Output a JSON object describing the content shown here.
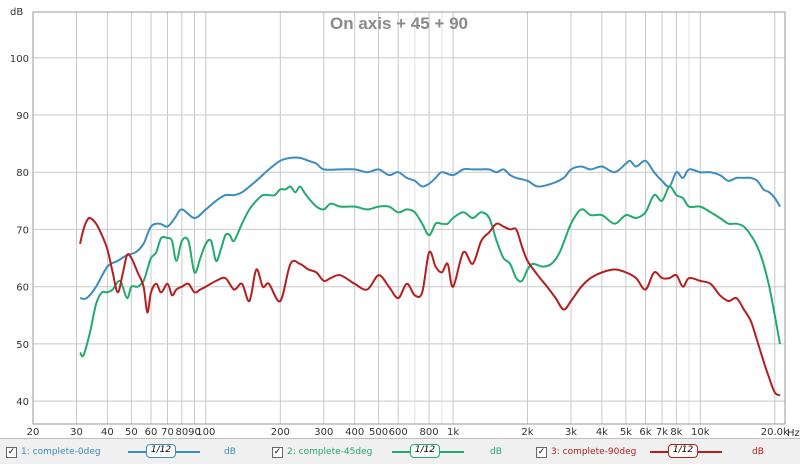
{
  "chart_data": {
    "type": "line",
    "title": "On axis + 45 + 90",
    "xlabel": "Hz",
    "ylabel": "dB",
    "xscale": "log",
    "xlim": [
      20,
      22000
    ],
    "ylim": [
      36,
      108
    ],
    "x_ticks": [
      {
        "v": 20,
        "t": "20"
      },
      {
        "v": 30,
        "t": "30"
      },
      {
        "v": 40,
        "t": "40"
      },
      {
        "v": 50,
        "t": "50"
      },
      {
        "v": 60,
        "t": "60"
      },
      {
        "v": 70,
        "t": "70"
      },
      {
        "v": 80,
        "t": "80"
      },
      {
        "v": 90,
        "t": "90"
      },
      {
        "v": 100,
        "t": "100"
      },
      {
        "v": 200,
        "t": "200"
      },
      {
        "v": 300,
        "t": "300"
      },
      {
        "v": 400,
        "t": "400"
      },
      {
        "v": 500,
        "t": "500"
      },
      {
        "v": 600,
        "t": "600"
      },
      {
        "v": 800,
        "t": "800"
      },
      {
        "v": 1000,
        "t": "1k"
      },
      {
        "v": 2000,
        "t": "2k"
      },
      {
        "v": 3000,
        "t": "3k"
      },
      {
        "v": 4000,
        "t": "4k"
      },
      {
        "v": 5000,
        "t": "5k"
      },
      {
        "v": 6000,
        "t": "6k"
      },
      {
        "v": 7000,
        "t": "7k"
      },
      {
        "v": 8000,
        "t": "8k"
      },
      {
        "v": 10000,
        "t": "10k"
      },
      {
        "v": 20000,
        "t": "20.0k"
      }
    ],
    "x_minor": [
      700,
      900,
      9000
    ],
    "y_ticks": [
      40,
      50,
      60,
      70,
      80,
      90,
      100
    ],
    "grid": true,
    "legend_position": "bottom",
    "series": [
      {
        "name": "1: complete-0deg",
        "color": "#3c8cbe",
        "x": [
          31,
          33,
          36,
          40,
          44,
          48,
          52,
          56,
          60,
          65,
          70,
          75,
          80,
          90,
          100,
          110,
          120,
          130,
          140,
          160,
          180,
          200,
          220,
          240,
          260,
          280,
          300,
          350,
          400,
          450,
          500,
          550,
          600,
          650,
          700,
          750,
          800,
          850,
          900,
          1000,
          1100,
          1200,
          1300,
          1400,
          1500,
          1600,
          1700,
          1800,
          2000,
          2200,
          2500,
          2800,
          3000,
          3300,
          3600,
          4000,
          4500,
          5000,
          5200,
          5500,
          6000,
          6500,
          7000,
          7500,
          8000,
          8500,
          9000,
          10000,
          11000,
          12000,
          13000,
          14000,
          15000,
          16000,
          17000,
          18000,
          19000,
          20000,
          21000
        ],
        "y": [
          58,
          58,
          60,
          63.5,
          64.5,
          65.5,
          66,
          67.5,
          70.5,
          71,
          70.5,
          72,
          73.5,
          72,
          73.5,
          75,
          76,
          76,
          76.5,
          78.5,
          80.5,
          82,
          82.5,
          82.5,
          82,
          81.5,
          80.5,
          80.5,
          80.5,
          80,
          80.5,
          79.5,
          80,
          79,
          78.5,
          77.5,
          78,
          79,
          80,
          79.5,
          80.5,
          80.5,
          80.5,
          80.5,
          80,
          80.5,
          79.5,
          79,
          78.5,
          77.5,
          78,
          79,
          80.5,
          81,
          80.5,
          81,
          80,
          81.5,
          82,
          81,
          82,
          80,
          78.5,
          77.5,
          80,
          79,
          80.5,
          80,
          80,
          79.5,
          78.5,
          79,
          79,
          79,
          78.5,
          77,
          76.5,
          75.5,
          74
        ]
      },
      {
        "name": "2: complete-45deg",
        "color": "#23aa6e",
        "x": [
          31,
          32,
          34,
          36,
          38,
          40,
          42,
          45,
          48,
          50,
          53,
          56,
          58,
          60,
          63,
          66,
          70,
          73,
          76,
          80,
          85,
          90,
          95,
          100,
          105,
          110,
          115,
          120,
          125,
          130,
          140,
          150,
          160,
          170,
          180,
          190,
          200,
          210,
          220,
          230,
          240,
          250,
          260,
          280,
          300,
          320,
          350,
          400,
          450,
          500,
          550,
          600,
          650,
          700,
          750,
          800,
          850,
          900,
          950,
          1000,
          1100,
          1200,
          1300,
          1400,
          1500,
          1600,
          1700,
          1800,
          1900,
          2000,
          2100,
          2300,
          2500,
          2700,
          3000,
          3300,
          3600,
          4000,
          4500,
          5000,
          5500,
          6000,
          6500,
          7000,
          7500,
          8000,
          8500,
          9000,
          10000,
          11000,
          12000,
          13000,
          14000,
          15000,
          16000,
          17000,
          18000,
          19000,
          20000,
          21000
        ],
        "y": [
          48.5,
          48,
          52,
          57,
          59,
          59,
          59.5,
          61,
          58,
          60,
          60,
          61,
          63,
          65,
          66,
          68.5,
          68.5,
          68,
          64.5,
          68,
          68,
          62.5,
          65,
          67.5,
          68,
          64.5,
          66.5,
          69,
          69,
          68,
          71,
          73.5,
          75,
          76,
          76,
          76,
          77,
          77,
          77.5,
          76.5,
          77.5,
          76.5,
          75.5,
          74,
          73.5,
          74.5,
          74,
          74,
          73.5,
          74,
          74,
          73,
          73.5,
          73,
          71,
          69,
          71,
          71,
          71,
          72,
          73,
          72,
          73,
          72,
          68,
          65,
          64,
          61.5,
          61,
          63,
          64,
          63.5,
          64,
          66,
          71,
          73.5,
          72.5,
          72.5,
          71,
          72.5,
          72,
          73,
          76,
          75,
          77.5,
          76,
          75.5,
          74,
          74,
          73,
          72,
          71,
          71,
          70.5,
          69,
          67,
          64,
          60,
          55,
          50
        ]
      },
      {
        "name": "3: complete-90deg",
        "color": "#b41e1e",
        "x": [
          31,
          32,
          33,
          34,
          36,
          38,
          40,
          42,
          44,
          46,
          48,
          50,
          53,
          56,
          58,
          60,
          63,
          66,
          70,
          73,
          76,
          80,
          85,
          90,
          95,
          100,
          110,
          120,
          130,
          140,
          150,
          160,
          170,
          180,
          200,
          220,
          240,
          260,
          280,
          300,
          320,
          350,
          400,
          450,
          500,
          550,
          600,
          650,
          700,
          750,
          800,
          850,
          900,
          950,
          1000,
          1100,
          1200,
          1300,
          1400,
          1500,
          1600,
          1700,
          1800,
          1900,
          2000,
          2200,
          2400,
          2600,
          2800,
          3000,
          3300,
          3600,
          4000,
          4500,
          5000,
          5500,
          6000,
          6500,
          7000,
          7500,
          8000,
          8500,
          9000,
          10000,
          11000,
          12000,
          13000,
          14000,
          15000,
          16000,
          17000,
          18000,
          19000,
          20000,
          21000
        ],
        "y": [
          67.5,
          70,
          71.5,
          72,
          71,
          69,
          66.5,
          62.5,
          59,
          62,
          65.5,
          65,
          62.5,
          60,
          55.5,
          59,
          60.5,
          59,
          60.5,
          58.5,
          59.5,
          60,
          60.5,
          59,
          59.5,
          60,
          61,
          61.5,
          59.5,
          60.5,
          57.5,
          63,
          60,
          60.5,
          57.5,
          64,
          64,
          63,
          62.5,
          61,
          61.5,
          62,
          60.5,
          59.5,
          62,
          60,
          58,
          60.5,
          58.5,
          59,
          66,
          63.5,
          62.5,
          64,
          60,
          66,
          64,
          68,
          69.5,
          71,
          70.5,
          70,
          70,
          67,
          64.5,
          62,
          60,
          58,
          56,
          57.5,
          60,
          61.5,
          62.5,
          63,
          62.5,
          61.5,
          59.5,
          62.5,
          61.5,
          61.5,
          62,
          60,
          61.5,
          61,
          60.5,
          58.5,
          57.5,
          58,
          56,
          54,
          50.5,
          47,
          44,
          41.5,
          41
        ]
      }
    ]
  },
  "legend": {
    "items": [
      {
        "label": "1: complete-0deg",
        "smoothing": "1/12",
        "unit": "dB",
        "color": "#3c8cbe",
        "check": "✓"
      },
      {
        "label": "2: complete-45deg",
        "smoothing": "1/12",
        "unit": "dB",
        "color": "#23aa6e",
        "check": "✓"
      },
      {
        "label": "3: complete-90deg",
        "smoothing": "1/12",
        "unit": "dB",
        "color": "#b41e1e",
        "check": "✓"
      }
    ]
  }
}
